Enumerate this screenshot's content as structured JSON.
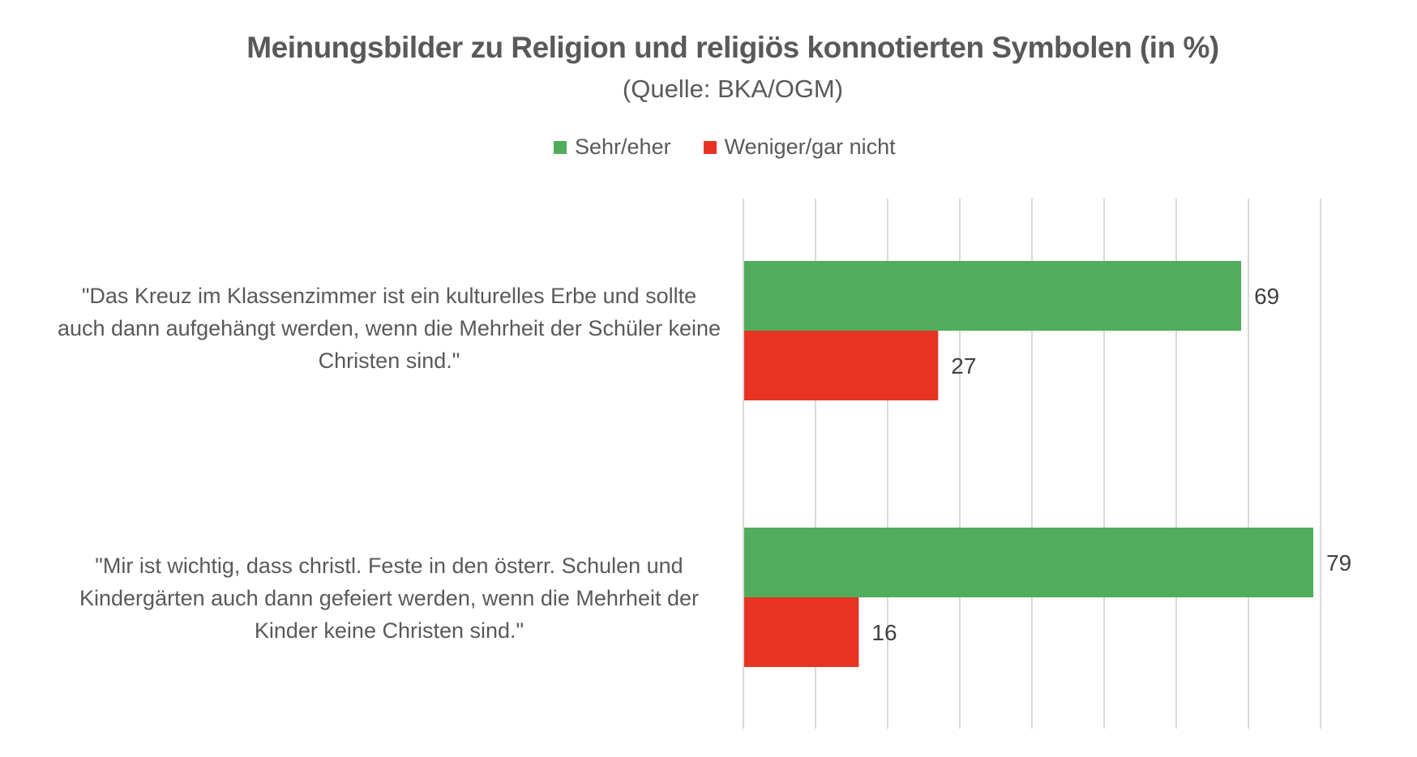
{
  "chart_data": {
    "type": "bar",
    "orientation": "horizontal",
    "title": "Meinungsbilder zu Religion und religiös konnotierten Symbolen (in %)",
    "subtitle": "(Quelle: BKA/OGM)",
    "xlabel": "",
    "ylabel": "",
    "xlim": [
      0,
      80
    ],
    "x_gridline_step": 10,
    "grid": true,
    "legend_position": "top-center",
    "categories": [
      "\"Das Kreuz im Klassenzimmer ist ein kulturelles Erbe und sollte auch dann aufgehängt werden, wenn die Mehrheit der Schüler keine Christen sind.\"",
      "\"Mir ist wichtig, dass christl. Feste in den österr. Schulen und Kindergärten auch dann gefeiert werden, wenn die Mehrheit der Kinder keine Christen sind.\""
    ],
    "series": [
      {
        "name": "Sehr/eher",
        "color": "#4FAD5B",
        "values": [
          69,
          79
        ]
      },
      {
        "name": "Weniger/gar nicht",
        "color": "#E83323",
        "values": [
          27,
          16
        ]
      }
    ],
    "data_labels": true
  }
}
